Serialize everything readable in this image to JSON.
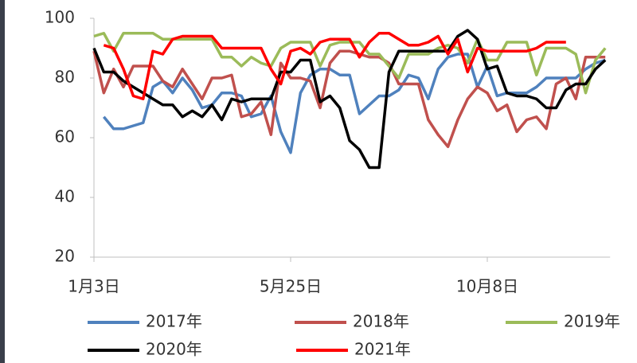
{
  "chart_data": {
    "type": "line",
    "categories": [
      "1月3日",
      null,
      null,
      null,
      null,
      null,
      null,
      null,
      null,
      null,
      null,
      null,
      null,
      null,
      null,
      null,
      null,
      null,
      null,
      null,
      "5月25日",
      null,
      null,
      null,
      null,
      null,
      null,
      null,
      null,
      null,
      null,
      null,
      null,
      null,
      null,
      null,
      null,
      null,
      null,
      null,
      "10月8日",
      null,
      null,
      null,
      null,
      null,
      null,
      null,
      null,
      null,
      null,
      null,
      null
    ],
    "ylim": [
      20,
      100
    ],
    "yticks": [
      20,
      40,
      60,
      80,
      100
    ],
    "grid": false,
    "legend": "bottom",
    "series": [
      {
        "name": "2017年",
        "color": "#4f81bd",
        "values": [
          null,
          67,
          63,
          63,
          64,
          65,
          77,
          79,
          75,
          80,
          76,
          70,
          71,
          75,
          75,
          74,
          67,
          68,
          74,
          62,
          55,
          75,
          81,
          83,
          83,
          81,
          81,
          68,
          71,
          74,
          74,
          76,
          81,
          80,
          73,
          83,
          87,
          88,
          88,
          77,
          84,
          74,
          75,
          75,
          75,
          77,
          80,
          80,
          80,
          80,
          83,
          85,
          86
        ]
      },
      {
        "name": "2018年",
        "color": "#c0504d",
        "values": [
          89,
          75,
          83,
          77,
          84,
          84,
          84,
          79,
          77,
          83,
          78,
          73,
          80,
          80,
          81,
          67,
          68,
          72,
          61,
          85,
          80,
          80,
          79,
          70,
          85,
          89,
          89,
          88,
          87,
          87,
          85,
          78,
          78,
          78,
          66,
          61,
          57,
          66,
          73,
          77,
          75,
          69,
          71,
          62,
          66,
          67,
          63,
          78,
          80,
          73,
          87,
          87,
          87
        ]
      },
      {
        "name": "2019年",
        "color": "#9bbb59",
        "values": [
          94,
          95,
          89,
          95,
          95,
          95,
          95,
          93,
          93,
          93,
          93,
          93,
          93,
          87,
          87,
          84,
          87,
          85,
          84,
          90,
          92,
          92,
          92,
          84,
          91,
          92,
          92,
          92,
          88,
          88,
          84,
          80,
          88,
          88,
          88,
          90,
          91,
          90,
          85,
          93,
          86,
          86,
          92,
          92,
          92,
          81,
          90,
          90,
          90,
          88,
          75,
          86,
          90
        ]
      },
      {
        "name": "2020年",
        "color": "#000000",
        "values": [
          90,
          82,
          82,
          79,
          77,
          75,
          73,
          71,
          71,
          67,
          69,
          67,
          71,
          66,
          73,
          72,
          73,
          73,
          73,
          82,
          82,
          86,
          86,
          72,
          74,
          70,
          59,
          56,
          50,
          50,
          82,
          89,
          89,
          89,
          89,
          89,
          89,
          94,
          96,
          93,
          83,
          84,
          75,
          74,
          74,
          73,
          70,
          70,
          76,
          78,
          78,
          83,
          86
        ]
      },
      {
        "name": "2021年",
        "color": "#ff0000",
        "values": [
          null,
          91,
          90,
          83,
          74,
          73,
          89,
          88,
          93,
          94,
          94,
          94,
          94,
          90,
          90,
          90,
          90,
          90,
          83,
          78,
          89,
          90,
          88,
          92,
          93,
          93,
          93,
          87,
          92,
          95,
          95,
          93,
          91,
          91,
          92,
          94,
          88,
          93,
          82,
          90,
          89,
          89,
          89,
          89,
          89,
          90,
          92,
          92,
          92,
          null,
          null,
          null,
          null
        ]
      }
    ]
  }
}
